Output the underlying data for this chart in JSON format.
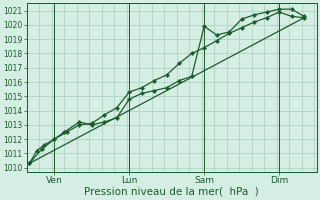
{
  "background_color": "#d4eee4",
  "grid_color": "#aacebb",
  "line_color": "#1a5c2a",
  "marker_color": "#1a5c2a",
  "xlabel": "Pression niveau de la mer(  hPa  )",
  "xlabel_fontsize": 7.5,
  "ytick_fontsize": 5.5,
  "xtick_fontsize": 6.5,
  "yticks": [
    1010,
    1011,
    1012,
    1013,
    1014,
    1015,
    1016,
    1017,
    1018,
    1019,
    1020,
    1021
  ],
  "ylim": [
    1009.7,
    1021.5
  ],
  "xtick_labels": [
    "Ven",
    "Lun",
    "Sam",
    "Dim"
  ],
  "xtick_positions": [
    1,
    4,
    7,
    10
  ],
  "vline_positions": [
    1,
    4,
    7,
    10
  ],
  "xlim": [
    -0.1,
    11.5
  ],
  "series1_x": [
    0.0,
    0.3,
    0.6,
    1.0,
    1.4,
    2.0,
    2.5,
    3.0,
    3.5,
    4.0,
    4.5,
    5.0,
    5.5,
    6.0,
    6.5,
    7.0,
    7.5,
    8.0,
    8.5,
    9.0,
    9.5,
    10.0,
    10.5,
    11.0
  ],
  "series1_y": [
    1010.3,
    1011.2,
    1011.6,
    1012.0,
    1012.5,
    1013.2,
    1013.0,
    1013.2,
    1013.5,
    1014.8,
    1015.2,
    1015.4,
    1015.6,
    1016.1,
    1016.4,
    1019.9,
    1019.3,
    1019.5,
    1020.4,
    1020.7,
    1020.9,
    1021.1,
    1021.1,
    1020.6
  ],
  "series2_x": [
    0.0,
    0.5,
    1.0,
    1.5,
    2.0,
    2.5,
    3.0,
    3.5,
    4.0,
    4.5,
    5.0,
    5.5,
    6.0,
    6.5,
    7.0,
    7.5,
    8.0,
    8.5,
    9.0,
    9.5,
    10.0,
    10.5,
    11.0
  ],
  "series2_y": [
    1010.3,
    1011.3,
    1012.0,
    1012.5,
    1013.0,
    1013.1,
    1013.7,
    1014.2,
    1015.3,
    1015.6,
    1016.1,
    1016.5,
    1017.3,
    1018.0,
    1018.4,
    1018.9,
    1019.4,
    1019.8,
    1020.2,
    1020.5,
    1020.9,
    1020.6,
    1020.5
  ],
  "series3_x": [
    0.0,
    11.0
  ],
  "series3_y": [
    1010.3,
    1020.5
  ]
}
